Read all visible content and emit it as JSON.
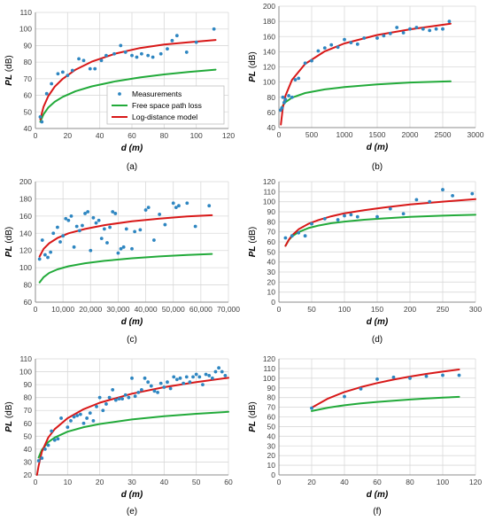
{
  "colors": {
    "measurements": "#2e86c1",
    "free_space": "#22aa3a",
    "log_distance": "#d81818",
    "grid": "#d9d9d9",
    "axis": "#8c8c8c"
  },
  "legend": {
    "items": [
      "Measurements",
      "Free space path loss",
      "Log-distance model"
    ]
  },
  "chart_data": [
    {
      "type": "scatter",
      "caption": "(a)",
      "ylabel": [
        "PL",
        " (dB)"
      ],
      "xlabel": "d (m)",
      "xlim": [
        0,
        120
      ],
      "ylim": [
        40,
        110
      ],
      "xticks": [
        0,
        20,
        40,
        60,
        80,
        100,
        120
      ],
      "yticks": [
        40,
        50,
        60,
        70,
        80,
        90,
        100,
        110
      ],
      "xtick_labels": [
        "0",
        "20",
        "40",
        "60",
        "80",
        "100",
        "120"
      ],
      "grid": true,
      "legend": "inside-bottom-right",
      "measurements": {
        "x": [
          3,
          4,
          7,
          10,
          14,
          17,
          20,
          23,
          27,
          30,
          34,
          37,
          41,
          44,
          49,
          53,
          56,
          60,
          63,
          66,
          70,
          73,
          78,
          82,
          85,
          88,
          94,
          100,
          111
        ],
        "y": [
          47,
          44,
          61,
          67,
          73,
          74,
          72,
          75,
          82,
          81,
          76,
          76,
          81,
          84,
          85,
          90,
          86,
          84,
          83,
          85,
          84,
          83,
          85,
          88,
          93,
          96,
          86,
          92,
          100
        ]
      },
      "free_space": {
        "x": [
          3,
          5,
          8,
          12,
          17,
          25,
          35,
          50,
          65,
          80,
          95,
          112
        ],
        "y": [
          44,
          48.5,
          52.6,
          56.1,
          59.1,
          62.5,
          65.4,
          68.5,
          70.8,
          72.6,
          74.1,
          75.5
        ]
      },
      "log_distance": {
        "x": [
          3,
          5,
          8,
          12,
          17,
          25,
          35,
          50,
          65,
          80,
          95,
          112
        ],
        "y": [
          45.5,
          53,
          59.5,
          65.2,
          70,
          75.5,
          80.3,
          85.2,
          88.5,
          90.6,
          92,
          93.4
        ]
      }
    },
    {
      "type": "scatter",
      "caption": "(b)",
      "ylabel": [
        "PL",
        " (dB)"
      ],
      "xlabel": "d (m)",
      "xlim": [
        0,
        3000
      ],
      "ylim": [
        40,
        200
      ],
      "xticks": [
        0,
        500,
        1000,
        1500,
        2000,
        2500,
        3000
      ],
      "yticks": [
        40,
        60,
        80,
        100,
        120,
        140,
        160,
        180,
        200
      ],
      "xtick_labels": [
        "0",
        "500",
        "1000",
        "1500",
        "2000",
        "2500",
        "3000"
      ],
      "grid": true,
      "measurements": {
        "x": [
          25,
          45,
          60,
          80,
          100,
          150,
          200,
          250,
          300,
          400,
          500,
          600,
          700,
          800,
          900,
          1000,
          1100,
          1200,
          1300,
          1500,
          1600,
          1700,
          1800,
          1900,
          2000,
          2100,
          2200,
          2300,
          2400,
          2500,
          2600
        ],
        "y": [
          63,
          66,
          80,
          73,
          77,
          82,
          80,
          103,
          105,
          125,
          128,
          141,
          145,
          149,
          146,
          156,
          152,
          150,
          158,
          158,
          161,
          164,
          172,
          165,
          170,
          172,
          170,
          168,
          170,
          170,
          180
        ]
      },
      "free_space": {
        "x": [
          30,
          60,
          100,
          200,
          400,
          700,
          1000,
          1500,
          2000,
          2620
        ],
        "y": [
          63,
          69,
          73.5,
          79.5,
          85.5,
          90.3,
          93.4,
          96.9,
          99.4,
          101
        ]
      },
      "log_distance": {
        "x": [
          30,
          60,
          100,
          200,
          400,
          700,
          1000,
          1500,
          2000,
          2620
        ],
        "y": [
          44,
          66,
          82,
          103,
          124,
          140.5,
          151,
          162,
          169.5,
          177
        ]
      }
    },
    {
      "type": "scatter",
      "caption": "(c)",
      "ylabel": [
        "PL",
        " (dB)"
      ],
      "xlabel": "d (m)",
      "xlim": [
        0,
        70000
      ],
      "ylim": [
        60,
        200
      ],
      "xticks": [
        0,
        10000,
        20000,
        30000,
        40000,
        50000,
        60000,
        70000
      ],
      "yticks": [
        60,
        80,
        100,
        120,
        140,
        160,
        180,
        200
      ],
      "xtick_labels": [
        "0",
        "10,000",
        "20,000",
        "30,000",
        "40,000",
        "50,000",
        "60,000",
        "70,000"
      ],
      "grid": true,
      "measurements": {
        "x": [
          1500,
          2500,
          3500,
          4500,
          5500,
          6500,
          8000,
          9000,
          10000,
          11000,
          12000,
          13000,
          14000,
          15000,
          16000,
          17000,
          18000,
          19000,
          20000,
          21000,
          22000,
          23000,
          24000,
          25000,
          26000,
          27000,
          28000,
          29000,
          30000,
          31000,
          32000,
          33000,
          35000,
          36000,
          38000,
          40000,
          41000,
          43000,
          45000,
          47000,
          50000,
          51000,
          52000,
          55000,
          58000,
          63000
        ],
        "y": [
          110,
          132,
          115,
          112,
          118,
          140,
          147,
          130,
          137,
          157,
          155,
          160,
          124,
          148,
          143,
          149,
          163,
          165,
          120,
          158,
          152,
          155,
          134,
          145,
          129,
          147,
          165,
          163,
          117,
          122,
          124,
          145,
          122,
          142,
          144,
          167,
          170,
          132,
          162,
          150,
          175,
          170,
          172,
          175,
          148,
          172
        ]
      },
      "free_space": {
        "x": [
          1500,
          3000,
          5000,
          8000,
          12000,
          18000,
          25000,
          35000,
          45000,
          55000,
          64000
        ],
        "y": [
          83,
          89,
          94,
          98.1,
          101.7,
          105.2,
          108,
          111,
          113.1,
          114.9,
          116
        ]
      },
      "log_distance": {
        "x": [
          1500,
          3000,
          5000,
          8000,
          12000,
          18000,
          25000,
          35000,
          45000,
          55000,
          64000
        ],
        "y": [
          113,
          122,
          128.5,
          134.5,
          140,
          145,
          149.5,
          154,
          157,
          159.5,
          161
        ]
      }
    },
    {
      "type": "scatter",
      "caption": "(d)",
      "ylabel": [
        "PL",
        " (dB)"
      ],
      "xlabel": "d (m)",
      "xlim": [
        0,
        300
      ],
      "ylim": [
        0,
        120
      ],
      "xticks": [
        0,
        50,
        100,
        150,
        200,
        250,
        300
      ],
      "yticks": [
        0,
        10,
        20,
        30,
        40,
        50,
        60,
        70,
        80,
        90,
        100,
        110,
        120
      ],
      "xtick_labels": [
        "0",
        "50",
        "100",
        "150",
        "200",
        "250",
        "300"
      ],
      "grid": true,
      "measurements": {
        "x": [
          10,
          20,
          30,
          40,
          50,
          70,
          90,
          100,
          110,
          120,
          150,
          170,
          190,
          210,
          230,
          250,
          265,
          295
        ],
        "y": [
          64,
          66,
          69,
          66,
          78,
          83,
          82,
          86,
          87,
          85,
          85,
          93,
          88,
          102,
          100,
          112,
          106,
          108
        ]
      },
      "free_space": {
        "x": [
          10,
          15,
          20,
          30,
          45,
          60,
          80,
          100,
          130,
          160,
          200,
          250,
          300
        ],
        "y": [
          56,
          61.8,
          65.5,
          69.8,
          73.8,
          76.2,
          78.6,
          80.2,
          82.1,
          83.4,
          84.9,
          86.1,
          87
        ]
      },
      "log_distance": {
        "x": [
          10,
          15,
          20,
          30,
          45,
          60,
          80,
          100,
          130,
          160,
          200,
          250,
          300
        ],
        "y": [
          56,
          62,
          66.5,
          72.5,
          78,
          81.7,
          85.5,
          88.5,
          91.6,
          94.2,
          97.2,
          100.1,
          102.5
        ]
      }
    },
    {
      "type": "scatter",
      "caption": "(e)",
      "ylabel": [
        "PL",
        " (dB)"
      ],
      "xlabel": "d (m)",
      "xlim": [
        0,
        60
      ],
      "ylim": [
        20,
        110
      ],
      "xticks": [
        0,
        10,
        20,
        30,
        40,
        50,
        60
      ],
      "yticks": [
        20,
        30,
        40,
        50,
        60,
        70,
        80,
        90,
        100,
        110
      ],
      "xtick_labels": [
        "0",
        "10",
        "20",
        "30",
        "40",
        "50",
        "60"
      ],
      "grid": true,
      "measurements": {
        "x": [
          1,
          2,
          3,
          4,
          5,
          6,
          7,
          8,
          10,
          11,
          12,
          13,
          14,
          15,
          16,
          17,
          18,
          19,
          20,
          21,
          22,
          23,
          24,
          25,
          26,
          27,
          28,
          29,
          30,
          31,
          32,
          33,
          34,
          35,
          36,
          37,
          38,
          39,
          40,
          41,
          42,
          43,
          44,
          45,
          46,
          47,
          48,
          49,
          50,
          51,
          52,
          53,
          54,
          55,
          56,
          57,
          58,
          59
        ],
        "y": [
          31,
          33,
          40,
          43,
          54,
          47,
          48,
          64,
          57,
          62,
          65,
          66,
          67,
          60,
          64,
          68,
          62,
          73,
          80,
          70,
          75,
          80,
          86,
          78,
          79,
          79,
          82,
          80,
          95,
          81,
          84,
          86,
          95,
          92,
          89,
          85,
          84,
          91,
          88,
          92,
          87,
          96,
          94,
          95,
          91,
          96,
          92,
          96,
          98,
          96,
          90,
          98,
          97,
          95,
          100,
          103,
          100,
          97
        ]
      },
      "free_space": {
        "x": [
          1,
          2,
          4,
          6,
          10,
          15,
          20,
          30,
          40,
          50,
          60
        ],
        "y": [
          33.5,
          39.5,
          45.5,
          49,
          53.5,
          57,
          59.5,
          63,
          65.5,
          67.4,
          68.9
        ]
      },
      "log_distance": {
        "x": [
          0.5,
          1,
          2,
          4,
          6,
          10,
          15,
          20,
          30,
          40,
          50,
          60
        ],
        "y": [
          20,
          27,
          38,
          49,
          55.5,
          64,
          71,
          76,
          83,
          88,
          92,
          95.3
        ]
      }
    },
    {
      "type": "scatter",
      "caption": "(f)",
      "ylabel": [
        "PL",
        " (dB)"
      ],
      "xlabel": "d (m)",
      "xlim": [
        0,
        120
      ],
      "ylim": [
        0,
        120
      ],
      "xticks": [
        0,
        20,
        40,
        60,
        80,
        100,
        120
      ],
      "yticks": [
        0,
        10,
        20,
        30,
        40,
        50,
        60,
        70,
        80,
        90,
        100,
        110,
        120
      ],
      "xtick_labels": [
        "0",
        "20",
        "40",
        "60",
        "80",
        "100",
        "120"
      ],
      "grid": true,
      "measurements": {
        "x": [
          20,
          40,
          50,
          60,
          70,
          80,
          90,
          100,
          110
        ],
        "y": [
          69,
          81,
          89,
          99,
          101,
          100,
          102,
          103,
          103
        ]
      },
      "free_space": {
        "x": [
          20,
          30,
          40,
          50,
          60,
          70,
          80,
          90,
          100,
          110
        ],
        "y": [
          66,
          69.5,
          72,
          74,
          75.5,
          76.8,
          78,
          79,
          79.9,
          80.7
        ]
      },
      "log_distance": {
        "x": [
          20,
          30,
          40,
          50,
          60,
          70,
          80,
          90,
          100,
          110
        ],
        "y": [
          69.5,
          79,
          85.7,
          90.8,
          95,
          98.6,
          101.7,
          104.4,
          106.8,
          109
        ]
      }
    }
  ]
}
